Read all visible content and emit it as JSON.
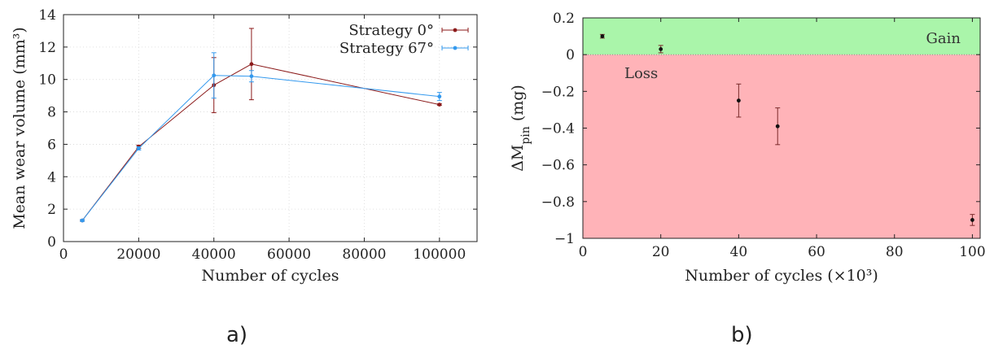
{
  "chart_data": [
    {
      "type": "line",
      "panel_label": "a)",
      "xlabel": "Number of cycles",
      "ylabel": "Mean wear volume (mm³)",
      "xlim": [
        0,
        110000
      ],
      "ylim": [
        0,
        14
      ],
      "xticks": [
        0,
        20000,
        40000,
        60000,
        80000,
        100000
      ],
      "yticks": [
        0,
        2,
        4,
        6,
        8,
        10,
        12,
        14
      ],
      "grid": true,
      "legend_position": "top-right",
      "series": [
        {
          "name": "Strategy 0°",
          "color": "#8b1a1a",
          "x": [
            5000,
            20000,
            40000,
            50000,
            100000
          ],
          "y": [
            1.3,
            5.85,
            9.65,
            10.95,
            8.45
          ],
          "err": [
            0.05,
            0.1,
            1.7,
            2.2,
            0.05
          ]
        },
        {
          "name": "Strategy 67°",
          "color": "#3399ee",
          "x": [
            5000,
            20000,
            40000,
            50000,
            100000
          ],
          "y": [
            1.3,
            5.75,
            10.25,
            10.2,
            8.95
          ],
          "err": [
            0.05,
            0.1,
            1.4,
            0.35,
            0.25
          ]
        }
      ]
    },
    {
      "type": "scatter",
      "panel_label": "b)",
      "xlabel": "Number of cycles (×10³)",
      "ylabel": "ΔM_pin (mg)",
      "xlim": [
        0,
        102
      ],
      "ylim": [
        -1,
        0.2
      ],
      "xticks": [
        0,
        20,
        40,
        60,
        80,
        100
      ],
      "yticks": [
        0.2,
        0,
        -0.2,
        -0.4,
        -0.6,
        -0.8,
        -1
      ],
      "regions": [
        {
          "label": "Gain",
          "from": 0,
          "to": 0.2,
          "color": "#aaf5aa"
        },
        {
          "label": "Loss",
          "from": -1,
          "to": 0,
          "color": "#ffb3b8"
        }
      ],
      "series": [
        {
          "color": "#111111",
          "x": [
            5,
            20,
            40,
            50,
            100
          ],
          "y": [
            0.1,
            0.03,
            -0.25,
            -0.39,
            -0.9
          ],
          "err": [
            0.01,
            0.02,
            0.09,
            0.1,
            0.03
          ]
        }
      ]
    }
  ]
}
